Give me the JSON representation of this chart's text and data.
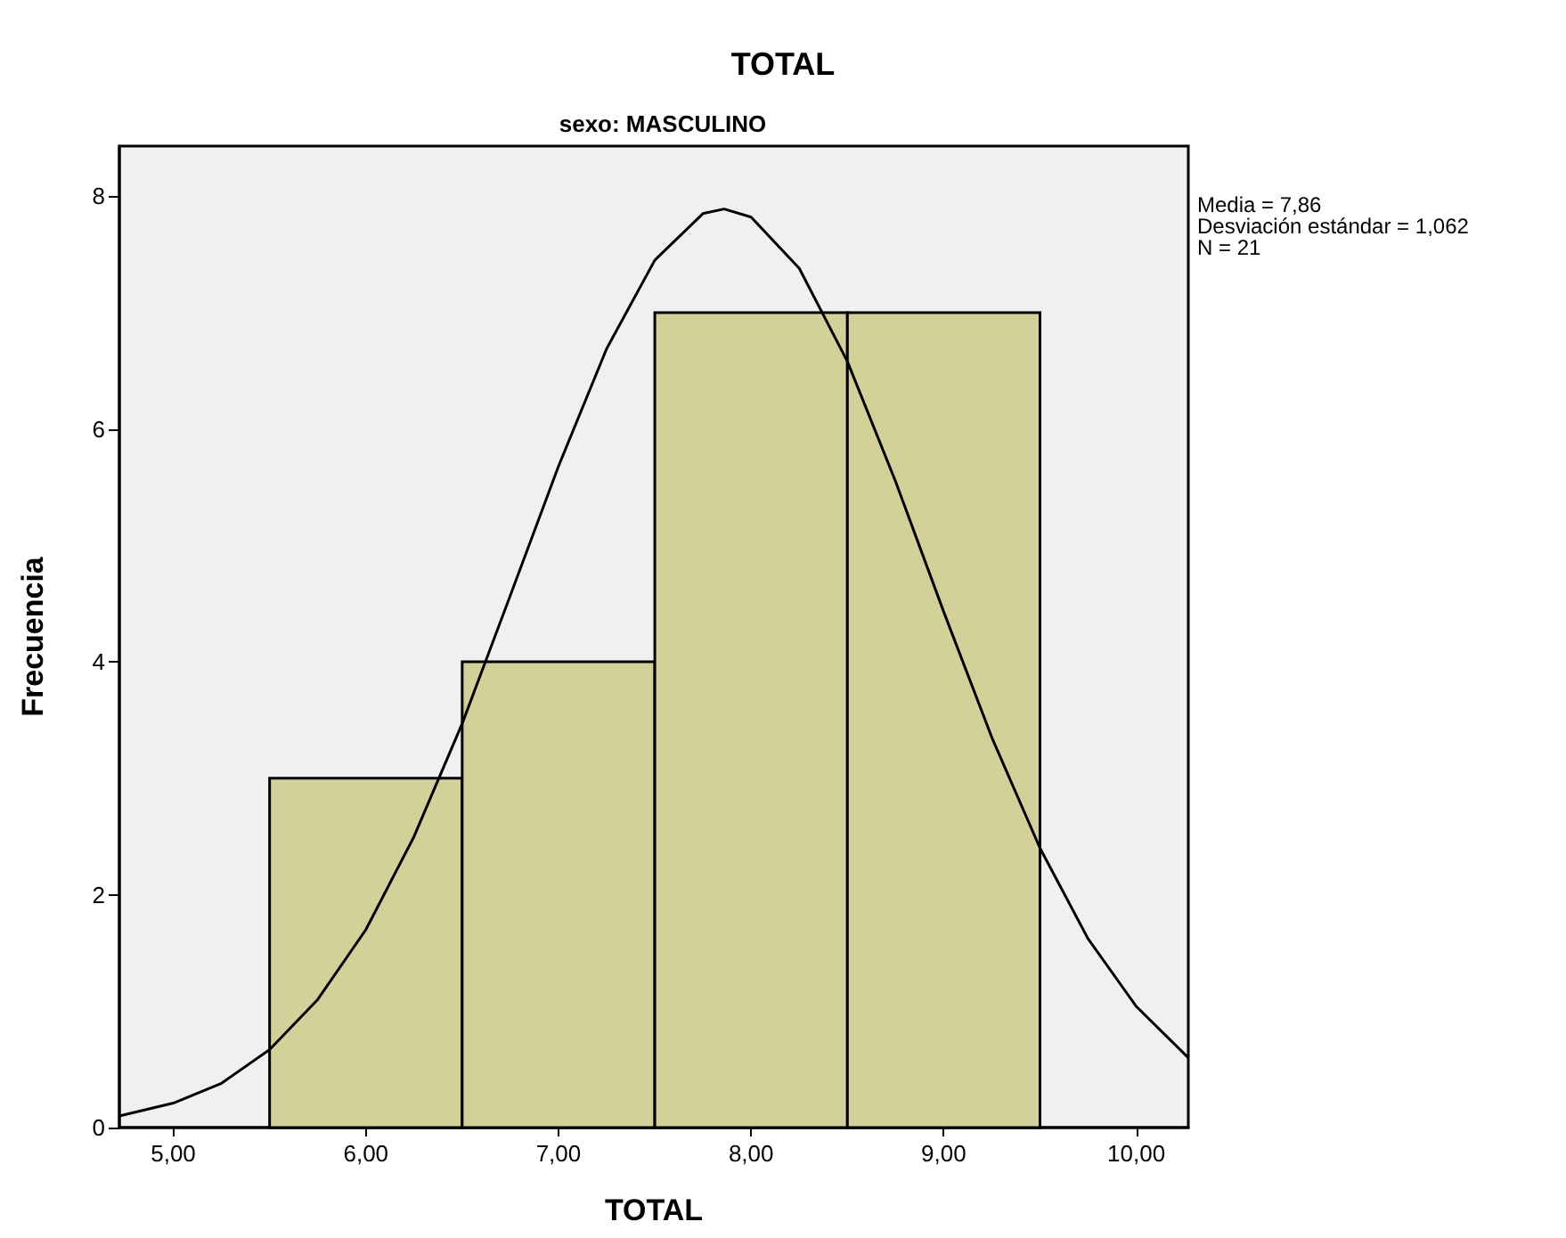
{
  "chart_data": {
    "type": "histogram",
    "title": "TOTAL",
    "subtitle": "sexo: MASCULINO",
    "xlabel": "TOTAL",
    "ylabel": "Frecuencia",
    "annotations": [
      "Media = 7,86",
      "Desviación estándar = 1,062",
      "N = 21"
    ],
    "series": [
      {
        "bins": [
          5.5,
          6.5,
          7.5,
          8.5,
          9.5
        ],
        "values": [
          3,
          4,
          7,
          7
        ],
        "color": "#d3d09a"
      },
      {
        "type": "line",
        "color": "#000000",
        "x": [
          4.72,
          5.0,
          5.25,
          5.5,
          5.75,
          6.0,
          6.25,
          6.5,
          6.75,
          7.0,
          7.25,
          7.5,
          7.75,
          7.86,
          8.0,
          8.25,
          8.5,
          8.75,
          9.0,
          9.25,
          9.5,
          9.75,
          10.0,
          10.27
        ],
        "values": [
          0.1,
          0.21,
          0.38,
          0.67,
          1.1,
          1.7,
          2.5,
          3.47,
          4.57,
          5.68,
          6.69,
          7.45,
          7.85,
          7.89,
          7.82,
          7.38,
          6.58,
          5.55,
          4.43,
          3.35,
          2.4,
          1.62,
          1.04,
          0.6
        ]
      }
    ],
    "xlim": [
      4.72,
      10.27
    ],
    "xticks": [
      {
        "value": 5,
        "label": "5,00"
      },
      {
        "value": 6,
        "label": "6,00"
      },
      {
        "value": 7,
        "label": "7,00"
      },
      {
        "value": 8,
        "label": "8,00"
      },
      {
        "value": 9,
        "label": "9,00"
      },
      {
        "value": 10,
        "label": "10,00"
      }
    ],
    "ylim": [
      0,
      8.43
    ],
    "yticks": [
      0,
      2,
      4,
      6,
      8
    ],
    "grid": false,
    "marker": "none",
    "line_style": "solid"
  }
}
